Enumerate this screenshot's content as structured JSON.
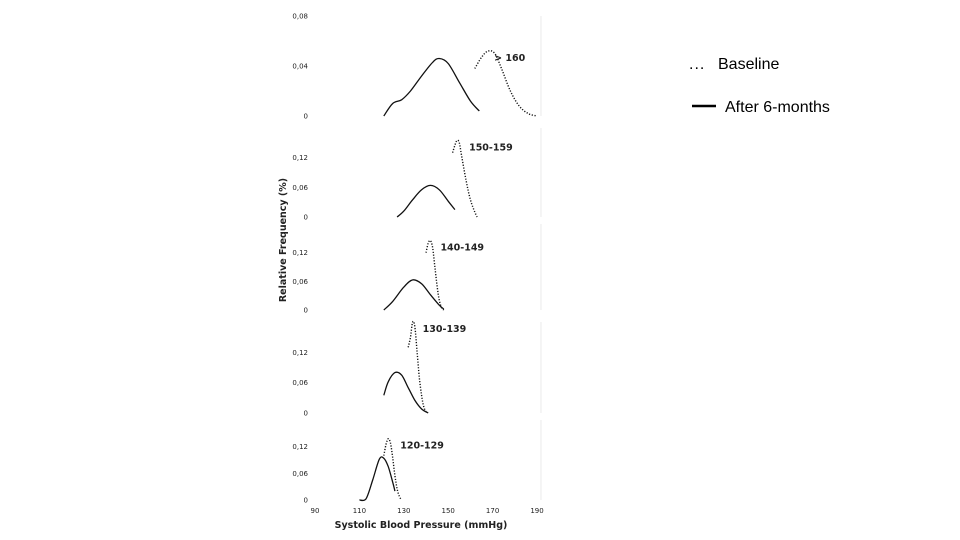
{
  "chart_data": {
    "type": "line",
    "ylabel": "Relative Frequency (%)",
    "xlabel": "Systolic Blood Pressure (mmHg)",
    "xlim": [
      90,
      190
    ],
    "x_ticks": [
      "90",
      "110",
      "130",
      "150",
      "170",
      "190"
    ],
    "grid": false,
    "legend_position": "top-right",
    "legend": [
      {
        "key": "baseline",
        "marker": "...",
        "label": "Baseline",
        "style": "dotted"
      },
      {
        "key": "after",
        "marker": "",
        "label": "After 6-months",
        "style": "solid"
      }
    ],
    "panels": [
      {
        "label": "> 160",
        "ylim": [
          0,
          0.08
        ],
        "y_ticks": [
          "0",
          "0,04",
          "0,08"
        ],
        "series": [
          {
            "key": "baseline",
            "points": [
              [
                162,
                0.038
              ],
              [
                165,
                0.047
              ],
              [
                168,
                0.052
              ],
              [
                171,
                0.05
              ],
              [
                174,
                0.038
              ],
              [
                178,
                0.02
              ],
              [
                182,
                0.008
              ],
              [
                186,
                0.002
              ],
              [
                190,
                0.0
              ]
            ]
          },
          {
            "key": "after",
            "points": [
              [
                121,
                0.0
              ],
              [
                125,
                0.01
              ],
              [
                129,
                0.013
              ],
              [
                133,
                0.02
              ],
              [
                138,
                0.032
              ],
              [
                143,
                0.043
              ],
              [
                146,
                0.046
              ],
              [
                150,
                0.042
              ],
              [
                155,
                0.027
              ],
              [
                160,
                0.012
              ],
              [
                164,
                0.004
              ]
            ]
          }
        ]
      },
      {
        "label": "150-159",
        "ylim": [
          0,
          0.18
        ],
        "y_ticks": [
          "0",
          "0,06",
          "0,12"
        ],
        "series": [
          {
            "key": "baseline",
            "points": [
              [
                152,
                0.13
              ],
              [
                153,
                0.145
              ],
              [
                154,
                0.155
              ],
              [
                155,
                0.15
              ],
              [
                156,
                0.125
              ],
              [
                158,
                0.075
              ],
              [
                160,
                0.035
              ],
              [
                162,
                0.01
              ],
              [
                163,
                0.0
              ]
            ]
          },
          {
            "key": "after",
            "points": [
              [
                127,
                0.0
              ],
              [
                130,
                0.012
              ],
              [
                134,
                0.035
              ],
              [
                138,
                0.055
              ],
              [
                142,
                0.064
              ],
              [
                146,
                0.055
              ],
              [
                150,
                0.032
              ],
              [
                153,
                0.015
              ]
            ]
          }
        ]
      },
      {
        "label": "140-149",
        "ylim": [
          0,
          0.18
        ],
        "y_ticks": [
          "0",
          "0,06",
          "0,12"
        ],
        "series": [
          {
            "key": "baseline",
            "points": [
              [
                140,
                0.12
              ],
              [
                141,
                0.14
              ],
              [
                142,
                0.145
              ],
              [
                143,
                0.13
              ],
              [
                144,
                0.09
              ],
              [
                145,
                0.05
              ],
              [
                146,
                0.02
              ],
              [
                147,
                0.005
              ],
              [
                148,
                0.0
              ]
            ]
          },
          {
            "key": "after",
            "points": [
              [
                121,
                0.0
              ],
              [
                125,
                0.018
              ],
              [
                130,
                0.048
              ],
              [
                134,
                0.063
              ],
              [
                138,
                0.055
              ],
              [
                142,
                0.032
              ],
              [
                146,
                0.01
              ],
              [
                148,
                0.002
              ]
            ]
          }
        ]
      },
      {
        "label": "130-139",
        "ylim": [
          0,
          0.18
        ],
        "y_ticks": [
          "0",
          "0,06",
          "0,12"
        ],
        "series": [
          {
            "key": "baseline",
            "points": [
              [
                132,
                0.13
              ],
              [
                133,
                0.15
              ],
              [
                134,
                0.18
              ],
              [
                135,
                0.17
              ],
              [
                136,
                0.12
              ],
              [
                137,
                0.07
              ],
              [
                138,
                0.035
              ],
              [
                139,
                0.012
              ],
              [
                140,
                0.003
              ]
            ]
          },
          {
            "key": "after",
            "points": [
              [
                121,
                0.035
              ],
              [
                123,
                0.062
              ],
              [
                126,
                0.08
              ],
              [
                129,
                0.075
              ],
              [
                132,
                0.05
              ],
              [
                135,
                0.025
              ],
              [
                138,
                0.008
              ],
              [
                141,
                0.0
              ]
            ]
          }
        ]
      },
      {
        "label": "120-129",
        "ylim": [
          0,
          0.18
        ],
        "y_ticks": [
          "0",
          "0,06",
          "0,12"
        ],
        "series": [
          {
            "key": "baseline",
            "points": [
              [
                121,
                0.1
              ],
              [
                122,
                0.125
              ],
              [
                123,
                0.138
              ],
              [
                124,
                0.128
              ],
              [
                125,
                0.095
              ],
              [
                126,
                0.055
              ],
              [
                127,
                0.025
              ],
              [
                128,
                0.008
              ],
              [
                129,
                0.0
              ]
            ]
          },
          {
            "key": "after",
            "points": [
              [
                110,
                0.0
              ],
              [
                113,
                0.003
              ],
              [
                116,
                0.045
              ],
              [
                119,
                0.092
              ],
              [
                121,
                0.094
              ],
              [
                123,
                0.075
              ],
              [
                125,
                0.04
              ],
              [
                126,
                0.02
              ]
            ]
          }
        ]
      }
    ]
  }
}
